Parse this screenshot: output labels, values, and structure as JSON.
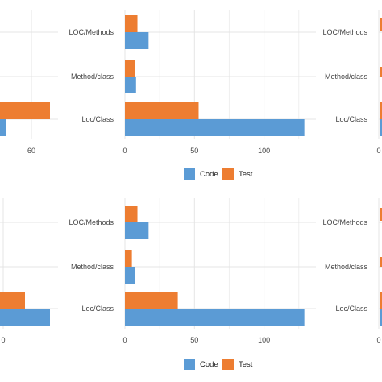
{
  "colors": {
    "code": "#5b9bd5",
    "test": "#ed7d31",
    "grid": "#e4e4e4",
    "text": "#444444"
  },
  "chart_data": [
    {
      "type": "bar",
      "orientation": "horizontal",
      "panel": "top-left",
      "categories": [
        "LOC/Methods",
        "Method/class",
        "Loc/Class"
      ],
      "series": [
        {
          "name": "Code",
          "values": [
            null,
            null,
            55
          ]
        },
        {
          "name": "Test",
          "values": [
            null,
            null,
            70
          ]
        }
      ],
      "xticks": [
        60
      ],
      "xlim": [
        0,
        75
      ],
      "grid": true
    },
    {
      "type": "bar",
      "orientation": "horizontal",
      "panel": "top-middle",
      "categories": [
        "LOC/Methods",
        "Method/class",
        "Loc/Class"
      ],
      "series": [
        {
          "name": "Code",
          "values": [
            17,
            8,
            129
          ]
        },
        {
          "name": "Test",
          "values": [
            9,
            7,
            53
          ]
        }
      ],
      "xticks": [
        0,
        50,
        100
      ],
      "xlim": [
        0,
        130
      ],
      "grid": true
    },
    {
      "type": "bar",
      "orientation": "horizontal",
      "panel": "top-right",
      "categories": [
        "LOC/Methods",
        "Method/class",
        "Loc/Class"
      ],
      "xticks": [
        0
      ],
      "grid": true
    },
    {
      "type": "bar",
      "orientation": "horizontal",
      "panel": "bottom-left",
      "categories": [
        "LOC/Methods",
        "Method/class",
        "Loc/Class"
      ],
      "series": [
        {
          "name": "Code",
          "values": [
            null,
            null,
            62
          ]
        },
        {
          "name": "Test",
          "values": [
            null,
            null,
            31
          ]
        }
      ],
      "xticks": [
        0
      ],
      "grid": true
    },
    {
      "type": "bar",
      "orientation": "horizontal",
      "panel": "bottom-middle",
      "categories": [
        "LOC/Methods",
        "Method/class",
        "Loc/Class"
      ],
      "series": [
        {
          "name": "Code",
          "values": [
            17,
            7,
            129
          ]
        },
        {
          "name": "Test",
          "values": [
            9,
            5,
            38
          ]
        }
      ],
      "xticks": [
        0,
        50,
        100
      ],
      "xlim": [
        0,
        130
      ],
      "grid": true
    },
    {
      "type": "bar",
      "orientation": "horizontal",
      "panel": "bottom-right",
      "categories": [
        "LOC/Methods",
        "Method/class",
        "Loc/Class"
      ],
      "xticks": [
        0
      ],
      "grid": true
    }
  ],
  "legends": [
    {
      "items": [
        {
          "label": "Code",
          "color": "#5b9bd5"
        },
        {
          "label": "Test",
          "color": "#ed7d31"
        }
      ]
    },
    {
      "items": [
        {
          "label": "Code",
          "color": "#5b9bd5"
        },
        {
          "label": "Test",
          "color": "#ed7d31"
        }
      ]
    }
  ]
}
